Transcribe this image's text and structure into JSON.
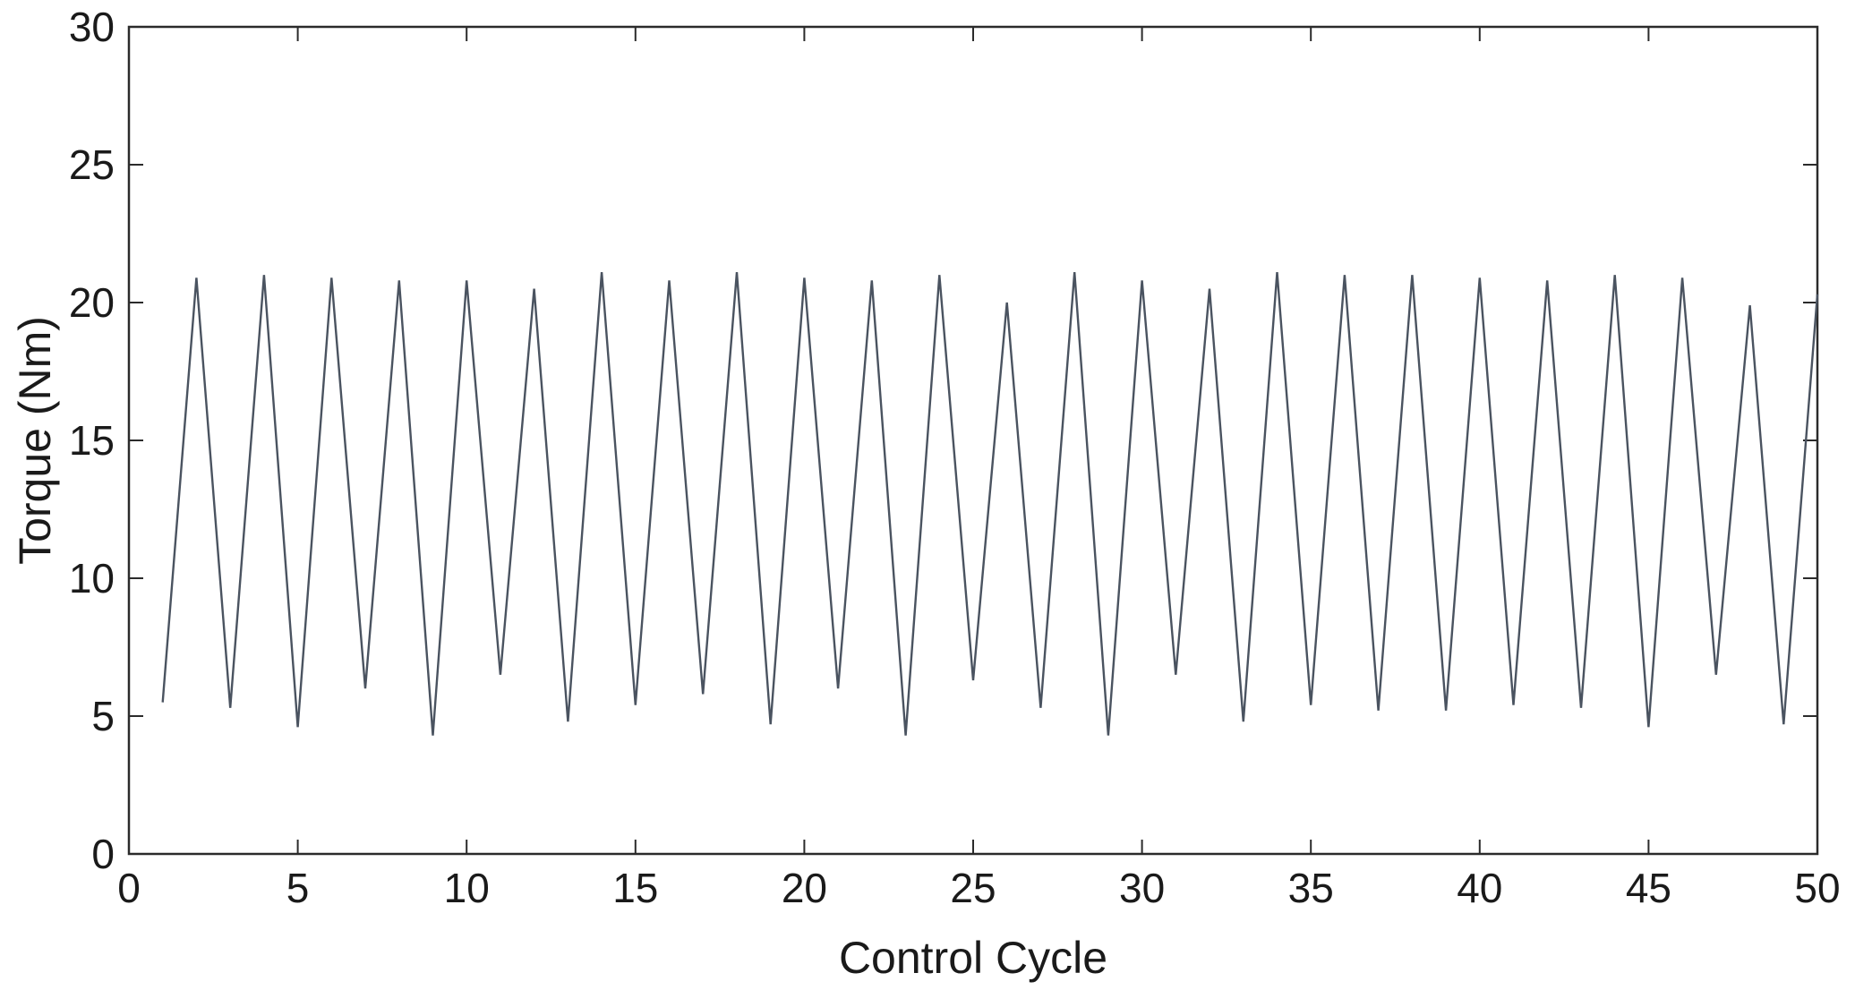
{
  "chart_data": {
    "type": "line",
    "title": "",
    "xlabel": "Control Cycle",
    "ylabel": "Torque (Nm)",
    "xlim": [
      0,
      50
    ],
    "ylim": [
      0,
      30
    ],
    "xticks": [
      0,
      5,
      10,
      15,
      20,
      25,
      30,
      35,
      40,
      45,
      50
    ],
    "yticks": [
      0,
      5,
      10,
      15,
      20,
      25,
      30
    ],
    "grid": false,
    "box": true,
    "line_color": "#4a5360",
    "series": [
      {
        "x": [
          1,
          2,
          3,
          4,
          5,
          6,
          7,
          8,
          9,
          10,
          11,
          12,
          13,
          14,
          15,
          16,
          17,
          18,
          19,
          20,
          21,
          22,
          23,
          24,
          25,
          26,
          27,
          28,
          29,
          30,
          31,
          32,
          33,
          34,
          35,
          36,
          37,
          38,
          39,
          40,
          41,
          42,
          43,
          44,
          45,
          46,
          47,
          48,
          49,
          50
        ],
        "values": [
          5.5,
          20.9,
          5.3,
          21.0,
          4.6,
          20.9,
          6.0,
          20.8,
          4.3,
          20.8,
          6.5,
          20.5,
          4.8,
          21.1,
          5.4,
          20.8,
          5.8,
          21.1,
          4.7,
          20.9,
          6.0,
          20.8,
          4.3,
          21.0,
          6.3,
          20.0,
          5.3,
          21.1,
          4.3,
          20.8,
          6.5,
          20.5,
          4.8,
          21.1,
          5.4,
          21.0,
          5.2,
          21.0,
          5.2,
          20.9,
          5.4,
          20.8,
          5.3,
          21.0,
          4.6,
          20.9,
          6.5,
          19.9,
          4.7,
          20.3
        ]
      }
    ]
  }
}
